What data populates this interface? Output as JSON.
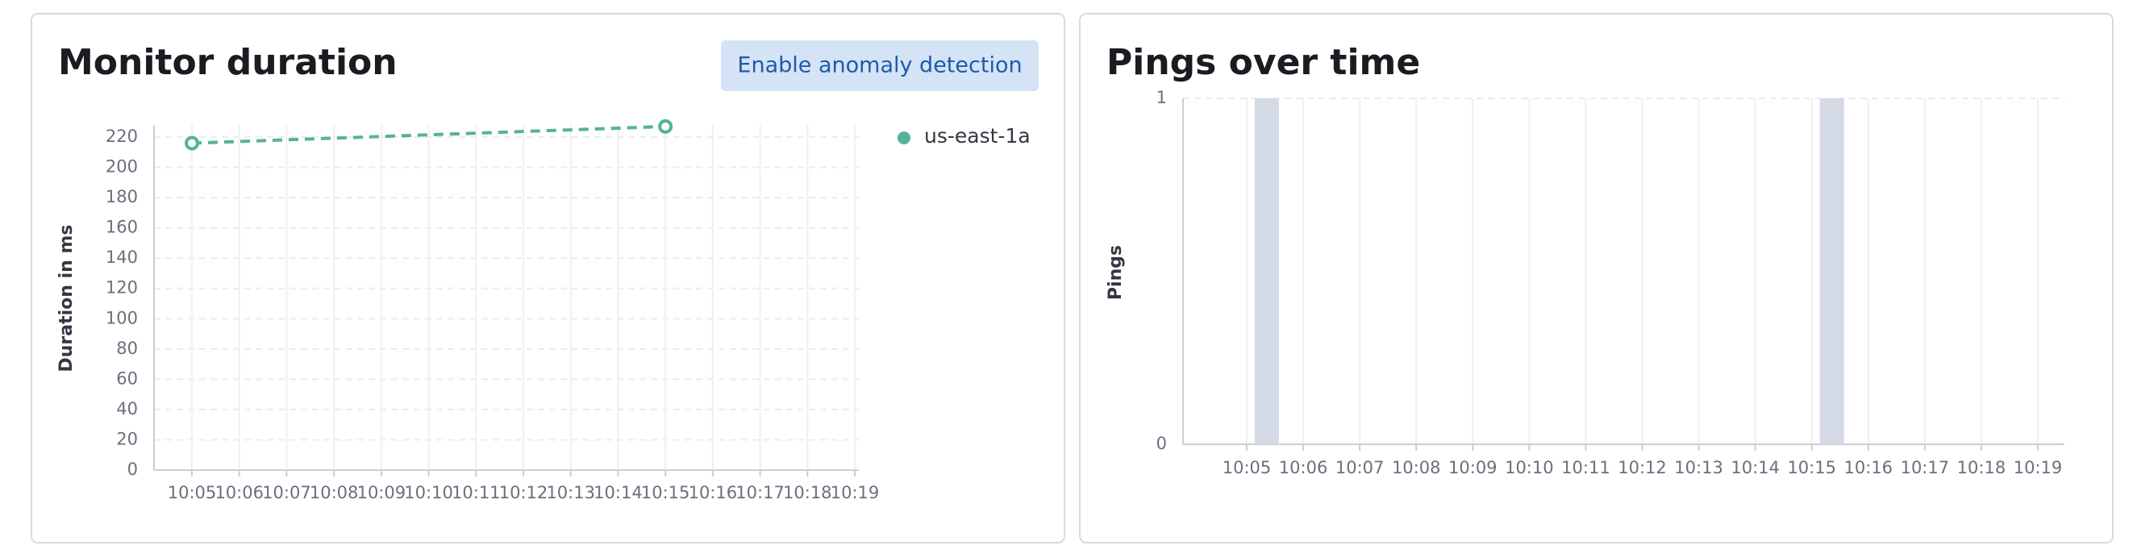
{
  "chart_data": [
    {
      "type": "line",
      "title": "Monitor duration",
      "button": "Enable anomaly detection",
      "y_label": "Duration in ms",
      "x": [
        "10:05",
        "10:15"
      ],
      "series": [
        {
          "name": "us-east-1a",
          "color": "#54b399",
          "values": [
            216,
            227
          ]
        }
      ],
      "ylim": [
        0,
        228
      ],
      "yticks": [
        0,
        20,
        40,
        60,
        80,
        100,
        120,
        140,
        160,
        180,
        200,
        220
      ],
      "xticks": [
        "10:05",
        "10:06",
        "10:07",
        "10:08",
        "10:09",
        "10:10",
        "10:11",
        "10:12",
        "10:13",
        "10:14",
        "10:15",
        "10:16",
        "10:17",
        "10:18",
        "10:19"
      ],
      "grid": true
    },
    {
      "type": "bar",
      "title": "Pings over time",
      "y_label": "Pings",
      "x": [
        "10:05",
        "10:15"
      ],
      "values": [
        1,
        1
      ],
      "color": "#d3dae6",
      "ylim": [
        0,
        1
      ],
      "yticks": [
        0,
        1
      ],
      "xticks": [
        "10:05",
        "10:06",
        "10:07",
        "10:08",
        "10:09",
        "10:10",
        "10:11",
        "10:12",
        "10:13",
        "10:14",
        "10:15",
        "10:16",
        "10:17",
        "10:18",
        "10:19"
      ],
      "grid": true
    }
  ]
}
